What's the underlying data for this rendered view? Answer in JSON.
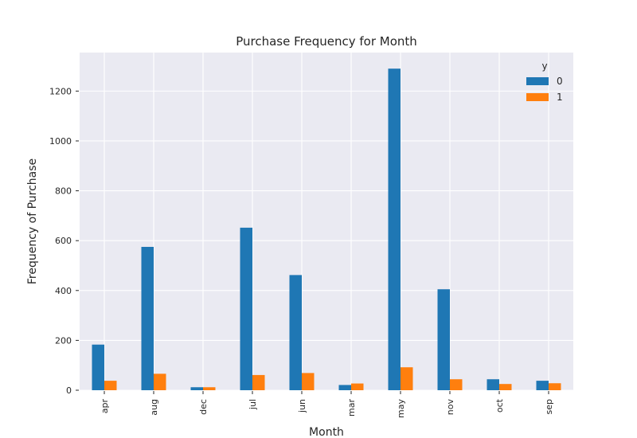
{
  "chart_data": {
    "type": "bar",
    "title": "Purchase Frequency for Month",
    "xlabel": "Month",
    "ylabel": "Frequency of Purchase",
    "categories": [
      "apr",
      "aug",
      "dec",
      "jul",
      "jun",
      "mar",
      "may",
      "nov",
      "oct",
      "sep"
    ],
    "series": [
      {
        "name": "0",
        "color": "#1f77b4",
        "values": [
          183,
          575,
          12,
          652,
          462,
          21,
          1290,
          405,
          44,
          38
        ]
      },
      {
        "name": "1",
        "color": "#ff7f0e",
        "values": [
          38,
          66,
          12,
          61,
          69,
          27,
          92,
          44,
          25,
          28
        ]
      }
    ],
    "yticks": [
      0,
      200,
      400,
      600,
      800,
      1000,
      1200
    ],
    "ylim": [
      0,
      1354.5
    ],
    "legend": {
      "title": "y",
      "placement": "top-right"
    },
    "grid": true,
    "colors": {
      "background": "#eaeaf2",
      "grid": "#ffffff"
    }
  }
}
